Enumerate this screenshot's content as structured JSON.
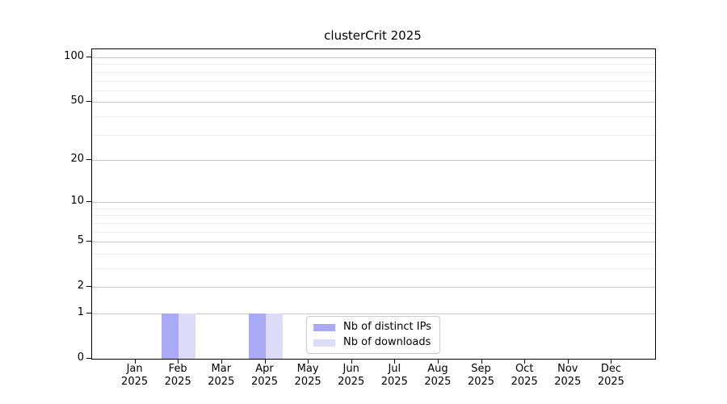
{
  "figure": {
    "background": "#ffffff"
  },
  "chart_data": {
    "type": "bar",
    "title": "clusterCrit 2025",
    "categories": [
      "Jan 2025",
      "Feb 2025",
      "Mar 2025",
      "Apr 2025",
      "May 2025",
      "Jun 2025",
      "Jul 2025",
      "Aug 2025",
      "Sep 2025",
      "Oct 2025",
      "Nov 2025",
      "Dec 2025"
    ],
    "series": [
      {
        "name": "Nb of distinct IPs",
        "color": "#a9a9f6",
        "values": [
          0,
          1,
          0,
          1,
          0,
          0,
          0,
          0,
          0,
          0,
          0,
          0
        ]
      },
      {
        "name": "Nb of downloads",
        "color": "#dcdcf8",
        "values": [
          0,
          1,
          0,
          1,
          0,
          0,
          0,
          0,
          0,
          0,
          0,
          0
        ]
      }
    ],
    "xlabel": "",
    "ylabel": "",
    "y_scale": "log1p",
    "ylim": [
      0,
      101
    ],
    "y_ticks_labeled": [
      0,
      1,
      2,
      5,
      10,
      20,
      50,
      100
    ],
    "y_minor_gridlines": [
      3,
      4,
      6,
      7,
      8,
      9,
      30,
      40,
      60,
      70,
      80,
      90
    ],
    "grid": "horizontal",
    "legend_position": "bottom-center-inside",
    "colors": {
      "major_grid": "#c9c9c9",
      "minor_grid": "#ececec",
      "spine": "#000000",
      "background": "#ffffff"
    }
  }
}
